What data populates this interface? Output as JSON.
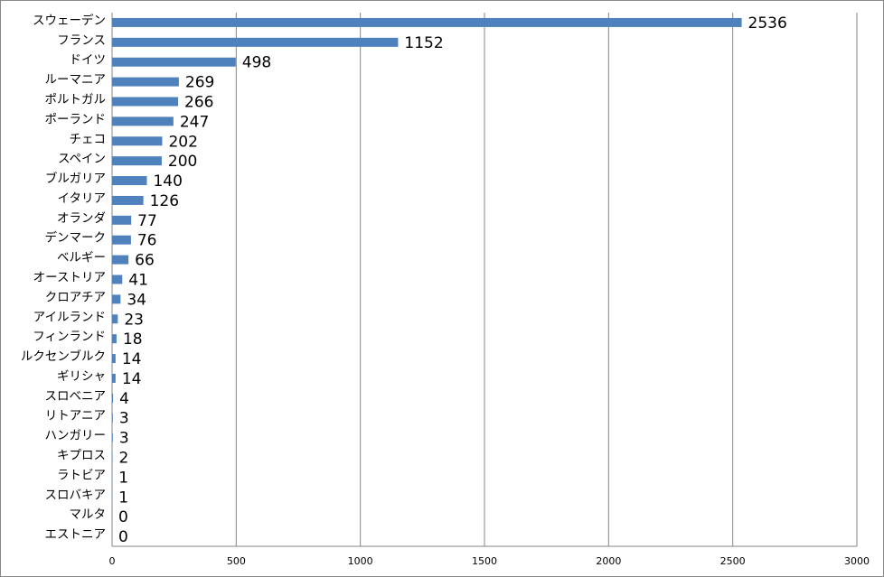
{
  "chart_data": {
    "type": "bar",
    "orientation": "horizontal",
    "categories": [
      "スウェーデン",
      "フランス",
      "ドイツ",
      "ルーマニア",
      "ポルトガル",
      "ポーランド",
      "チェコ",
      "スペイン",
      "ブルガリア",
      "イタリア",
      "オランダ",
      "デンマーク",
      "ベルギー",
      "オーストリア",
      "クロアチア",
      "アイルランド",
      "フィンランド",
      "ルクセンブルク",
      "ギリシャ",
      "スロベニア",
      "リトアニア",
      "ハンガリー",
      "キプロス",
      "ラトビア",
      "スロバキア",
      "マルタ",
      "エストニア"
    ],
    "values": [
      2536,
      1152,
      498,
      269,
      266,
      247,
      202,
      200,
      140,
      126,
      77,
      76,
      66,
      41,
      34,
      23,
      18,
      14,
      14,
      4,
      3,
      3,
      2,
      1,
      1,
      0,
      0
    ],
    "color": "#4f81bd",
    "xlim": [
      0,
      3000
    ],
    "xticks": [
      0,
      500,
      1000,
      1500,
      2000,
      2500,
      3000
    ],
    "grid": true
  }
}
